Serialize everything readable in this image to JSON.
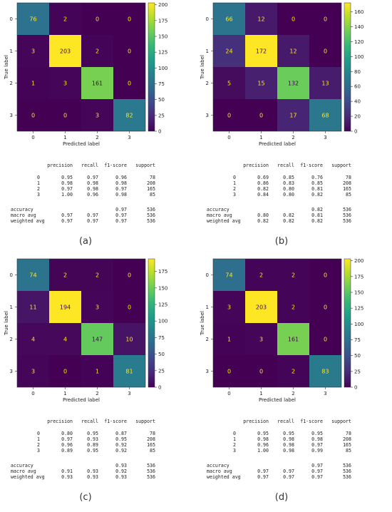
{
  "colors": {
    "viridis": [
      "#440154",
      "#482878",
      "#3e4989",
      "#31688e",
      "#26828e",
      "#1f9e89",
      "#35b779",
      "#6ece58",
      "#b5de2b",
      "#fde725"
    ],
    "text_on_dark": "#fde725",
    "text_on_light": "#440154"
  },
  "common": {
    "xlabel": "Predicted label",
    "ylabel": "True label",
    "classes": [
      "0",
      "1",
      "2",
      "3"
    ],
    "report_headers": [
      "precision",
      "recall",
      "f1-score",
      "support"
    ],
    "report_summary_labels": [
      "accuracy",
      "macro avg",
      "weighted avg"
    ]
  },
  "chart_data": [
    {
      "type": "heatmap",
      "caption": "(a)",
      "matrix": [
        [
          76,
          2,
          0,
          0
        ],
        [
          3,
          203,
          2,
          0
        ],
        [
          1,
          3,
          161,
          0
        ],
        [
          0,
          0,
          3,
          82
        ]
      ],
      "colorbar_max": 203,
      "colorbar_ticks": [
        "0",
        "25",
        "50",
        "75",
        "100",
        "125",
        "150",
        "175",
        "200"
      ],
      "report": {
        "rows": [
          [
            "0",
            "0.95",
            "0.97",
            "0.96",
            "78"
          ],
          [
            "1",
            "0.98",
            "0.98",
            "0.98",
            "208"
          ],
          [
            "2",
            "0.97",
            "0.98",
            "0.97",
            "165"
          ],
          [
            "3",
            "1.00",
            "0.96",
            "0.98",
            "85"
          ]
        ],
        "accuracy": [
          "accuracy",
          "",
          "",
          "0.97",
          "536"
        ],
        "macro": [
          "macro avg",
          "0.97",
          "0.97",
          "0.97",
          "536"
        ],
        "weighted": [
          "weighted avg",
          "0.97",
          "0.97",
          "0.97",
          "536"
        ]
      }
    },
    {
      "type": "heatmap",
      "caption": "(b)",
      "matrix": [
        [
          66,
          12,
          0,
          0
        ],
        [
          24,
          172,
          12,
          0
        ],
        [
          5,
          15,
          132,
          13
        ],
        [
          0,
          0,
          17,
          68
        ]
      ],
      "colorbar_max": 172,
      "colorbar_ticks": [
        "0",
        "20",
        "40",
        "60",
        "80",
        "100",
        "120",
        "140",
        "160"
      ],
      "report": {
        "rows": [
          [
            "0",
            "0.69",
            "0.85",
            "0.76",
            "78"
          ],
          [
            "1",
            "0.86",
            "0.83",
            "0.85",
            "208"
          ],
          [
            "2",
            "0.82",
            "0.80",
            "0.81",
            "165"
          ],
          [
            "3",
            "0.84",
            "0.80",
            "0.82",
            "85"
          ]
        ],
        "accuracy": [
          "accuracy",
          "",
          "",
          "0.82",
          "536"
        ],
        "macro": [
          "macro avg",
          "0.80",
          "0.82",
          "0.81",
          "536"
        ],
        "weighted": [
          "weighted avg",
          "0.82",
          "0.82",
          "0.82",
          "536"
        ]
      }
    },
    {
      "type": "heatmap",
      "caption": "(c)",
      "matrix": [
        [
          74,
          2,
          2,
          0
        ],
        [
          11,
          194,
          3,
          0
        ],
        [
          4,
          4,
          147,
          10
        ],
        [
          3,
          0,
          1,
          81
        ]
      ],
      "colorbar_max": 194,
      "colorbar_ticks": [
        "0",
        "25",
        "50",
        "75",
        "100",
        "125",
        "150",
        "175"
      ],
      "report": {
        "rows": [
          [
            "0",
            "0.80",
            "0.95",
            "0.87",
            "78"
          ],
          [
            "1",
            "0.97",
            "0.93",
            "0.95",
            "208"
          ],
          [
            "2",
            "0.96",
            "0.89",
            "0.92",
            "165"
          ],
          [
            "3",
            "0.89",
            "0.95",
            "0.92",
            "85"
          ]
        ],
        "accuracy": [
          "accuracy",
          "",
          "",
          "0.93",
          "536"
        ],
        "macro": [
          "macro avg",
          "0.91",
          "0.93",
          "0.92",
          "536"
        ],
        "weighted": [
          "weighted avg",
          "0.93",
          "0.93",
          "0.93",
          "536"
        ]
      }
    },
    {
      "type": "heatmap",
      "caption": "(d)",
      "matrix": [
        [
          74,
          2,
          2,
          0
        ],
        [
          3,
          203,
          2,
          0
        ],
        [
          1,
          3,
          161,
          0
        ],
        [
          0,
          0,
          2,
          83
        ]
      ],
      "colorbar_max": 203,
      "colorbar_ticks": [
        "0",
        "25",
        "50",
        "75",
        "100",
        "125",
        "150",
        "175",
        "200"
      ],
      "report": {
        "rows": [
          [
            "0",
            "0.95",
            "0.95",
            "0.95",
            "78"
          ],
          [
            "1",
            "0.98",
            "0.98",
            "0.98",
            "208"
          ],
          [
            "2",
            "0.96",
            "0.98",
            "0.97",
            "165"
          ],
          [
            "3",
            "1.00",
            "0.98",
            "0.99",
            "85"
          ]
        ],
        "accuracy": [
          "accuracy",
          "",
          "",
          "0.97",
          "536"
        ],
        "macro": [
          "macro avg",
          "0.97",
          "0.97",
          "0.97",
          "536"
        ],
        "weighted": [
          "weighted avg",
          "0.97",
          "0.97",
          "0.97",
          "536"
        ]
      }
    }
  ]
}
